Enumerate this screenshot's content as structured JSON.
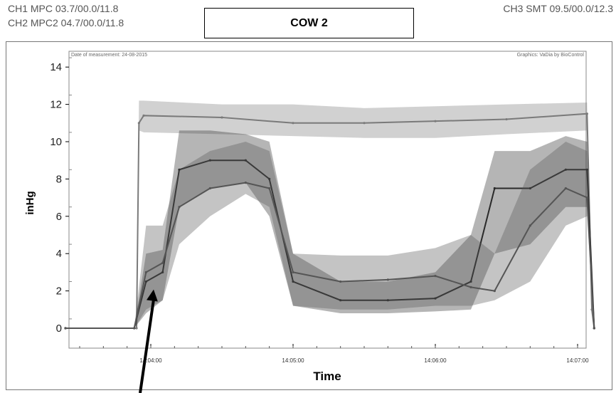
{
  "header": {
    "ch1": "CH1 MPC 03.7/00.0/11.8",
    "ch2": "CH2 MPC2 04.7/00.0/11.8",
    "ch3": "CH3 SMT 09.5/00.0/12.3",
    "title": "COW 2"
  },
  "chart_data": {
    "type": "line",
    "notes_top_left": "Date of measurement: 24-08-2015",
    "notes_top_right": "Graphics: VaDia by BioControl",
    "xlabel": "Time",
    "ylabel": "inHg",
    "x_ticks": [
      "14:04:00",
      "14:05:00",
      "14:06:00",
      "14:07:00"
    ],
    "y_ticks": [
      0,
      2,
      4,
      6,
      8,
      10,
      12,
      14
    ],
    "ylim": [
      0,
      14.5
    ],
    "grid": false,
    "series": [
      {
        "name": "CH3 SMT",
        "color": "#7a7a7a",
        "x": [
          "14:03:24",
          "14:03:54",
          "14:03:55",
          "14:03:57",
          "14:04:30",
          "14:05:00",
          "14:05:30",
          "14:06:00",
          "14:06:30",
          "14:07:04",
          "14:07:06",
          "14:07:07"
        ],
        "y": [
          0,
          0,
          11.0,
          11.4,
          11.3,
          11.0,
          11.0,
          11.1,
          11.2,
          11.5,
          1.0,
          0
        ],
        "y_low": [
          0,
          0,
          10.6,
          10.5,
          10.4,
          10.3,
          10.2,
          10.2,
          10.4,
          10.6,
          1.0,
          0
        ],
        "y_high": [
          0,
          0,
          12.2,
          12.2,
          12.0,
          12.0,
          11.8,
          11.9,
          12.0,
          12.1,
          1.0,
          0
        ]
      },
      {
        "name": "CH1 MPC",
        "color": "#2a2a2a",
        "x": [
          "14:03:24",
          "14:03:53",
          "14:03:58",
          "14:04:05",
          "14:04:12",
          "14:04:25",
          "14:04:40",
          "14:04:50",
          "14:05:00",
          "14:05:20",
          "14:05:40",
          "14:06:00",
          "14:06:15",
          "14:06:25",
          "14:06:40",
          "14:06:55",
          "14:07:04",
          "14:07:07"
        ],
        "y": [
          0,
          0,
          2.5,
          3.0,
          8.5,
          9.0,
          9.0,
          8.0,
          2.5,
          1.5,
          1.5,
          1.6,
          2.5,
          7.5,
          7.5,
          8.5,
          8.5,
          0
        ],
        "y_low": [
          0,
          0,
          0.8,
          1.5,
          6.5,
          7.5,
          7.8,
          6.0,
          1.2,
          0.8,
          0.8,
          0.9,
          1.0,
          4.0,
          4.5,
          6.5,
          6.5,
          0
        ],
        "y_high": [
          0,
          0,
          4.0,
          4.2,
          10.6,
          10.6,
          10.4,
          10.0,
          4.0,
          2.5,
          2.5,
          3.0,
          5.0,
          9.5,
          9.5,
          10.3,
          10.0,
          0
        ]
      },
      {
        "name": "CH2 MPC2",
        "color": "#555555",
        "x": [
          "14:03:24",
          "14:03:53",
          "14:03:58",
          "14:04:05",
          "14:04:12",
          "14:04:25",
          "14:04:40",
          "14:04:50",
          "14:05:00",
          "14:05:20",
          "14:05:40",
          "14:06:00",
          "14:06:15",
          "14:06:25",
          "14:06:40",
          "14:06:55",
          "14:07:04",
          "14:07:07"
        ],
        "y": [
          0,
          0,
          3.0,
          3.5,
          6.5,
          7.5,
          7.8,
          7.5,
          3.0,
          2.5,
          2.6,
          2.8,
          2.2,
          2.0,
          5.5,
          7.5,
          7.0,
          0
        ],
        "y_low": [
          0,
          0,
          1.0,
          1.5,
          4.5,
          6.0,
          7.2,
          6.5,
          1.2,
          1.0,
          1.0,
          1.2,
          1.2,
          1.5,
          2.5,
          5.5,
          6.0,
          0
        ],
        "y_high": [
          0,
          0,
          5.5,
          5.5,
          8.5,
          9.5,
          10.0,
          9.5,
          4.0,
          3.9,
          3.9,
          4.3,
          5.0,
          4.0,
          8.5,
          10.0,
          9.5,
          0
        ]
      }
    ],
    "annotations": [
      {
        "type": "arrow",
        "points_to": {
          "x": "14:04:00",
          "y": 2.0
        }
      }
    ]
  }
}
